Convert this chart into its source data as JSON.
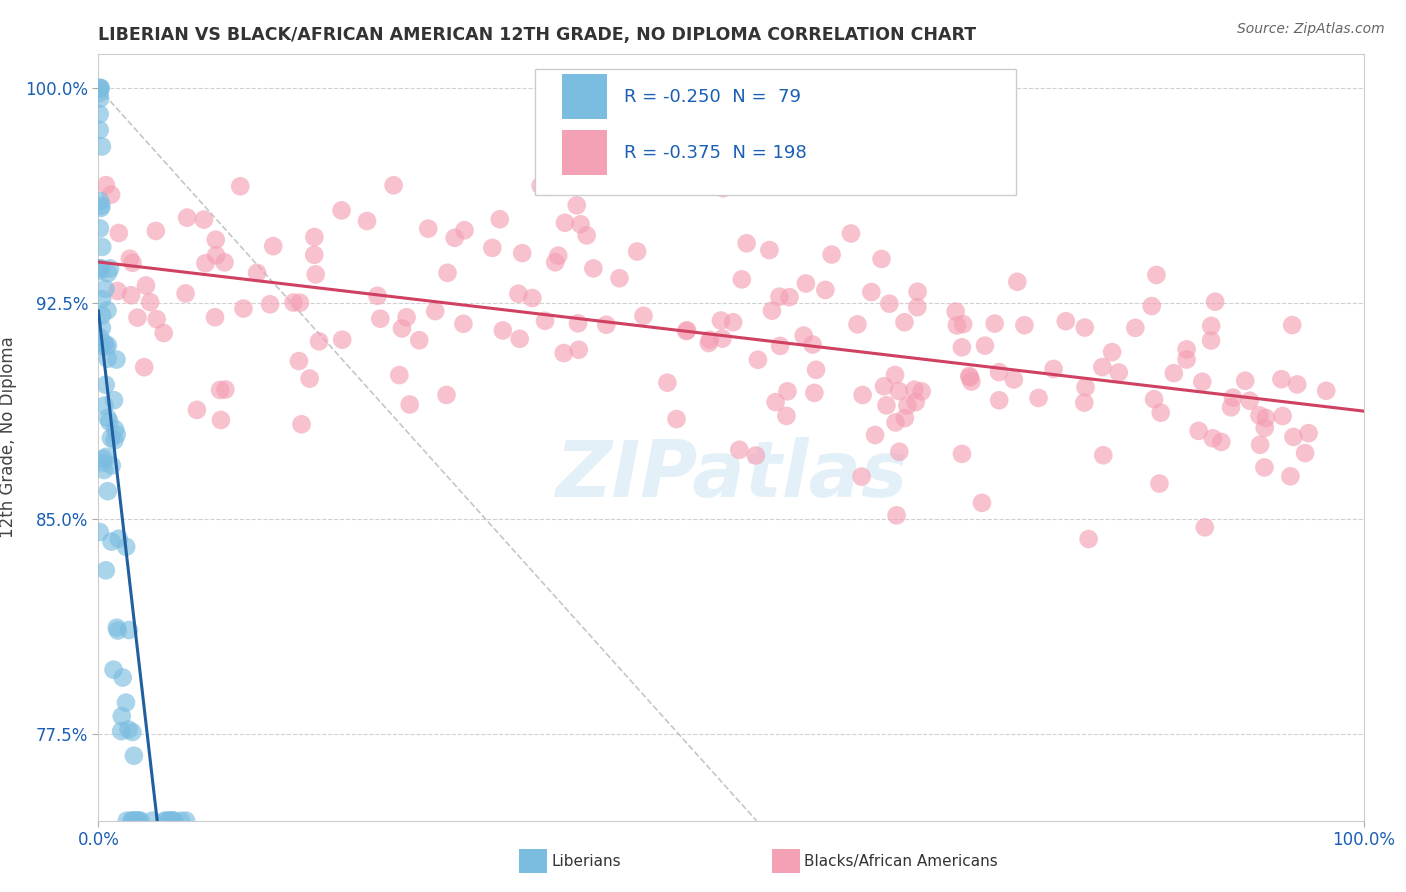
{
  "title": "LIBERIAN VS BLACK/AFRICAN AMERICAN 12TH GRADE, NO DIPLOMA CORRELATION CHART",
  "source": "Source: ZipAtlas.com",
  "ylabel": "12th Grade, No Diploma",
  "legend_label1": "Liberians",
  "legend_label2": "Blacks/African Americans",
  "R1": -0.25,
  "N1": 79,
  "R2": -0.375,
  "N2": 198,
  "color_blue": "#7bbde0",
  "color_pink": "#f4a0b5",
  "color_blue_line": "#2060a0",
  "color_pink_line": "#d04060",
  "color_text_blue": "#1a5fb4",
  "watermark": "ZIPatlas",
  "background_color": "#ffffff",
  "grid_color": "#d0d0d0",
  "diag_color": "#c0c0c0"
}
